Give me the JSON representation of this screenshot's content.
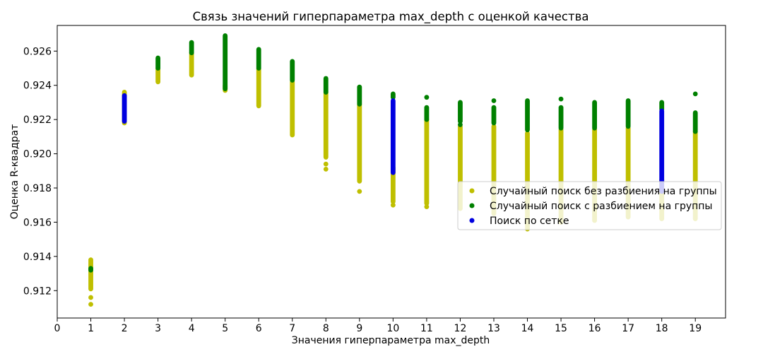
{
  "chart_data": {
    "type": "scatter",
    "title": "Связь значений гиперпараметра max_depth с оценкой качества",
    "xlabel": "Значения гиперпараметра max_depth",
    "ylabel": "Оценка R-квадрат",
    "xlim": [
      0,
      19.9
    ],
    "ylim": [
      0.9104,
      0.9275
    ],
    "x_ticks": [
      "0",
      "1",
      "2",
      "3",
      "4",
      "5",
      "6",
      "7",
      "8",
      "9",
      "10",
      "11",
      "12",
      "13",
      "14",
      "15",
      "16",
      "17",
      "18",
      "19"
    ],
    "y_ticks": [
      "0.912",
      "0.914",
      "0.916",
      "0.918",
      "0.920",
      "0.922",
      "0.924",
      "0.926"
    ],
    "grid": false,
    "legend_position": "right",
    "series": [
      {
        "name": "Случайный поиск без разбиения на группы",
        "color": "#bfbf00",
        "ranges": [
          {
            "x": 1,
            "min": 0.9121,
            "max": 0.9138
          },
          {
            "x": 2,
            "min": 0.9218,
            "max": 0.9236
          },
          {
            "x": 3,
            "min": 0.9242,
            "max": 0.925
          },
          {
            "x": 4,
            "min": 0.9246,
            "max": 0.9259
          },
          {
            "x": 5,
            "min": 0.9237,
            "max": 0.924
          },
          {
            "x": 6,
            "min": 0.9228,
            "max": 0.925
          },
          {
            "x": 7,
            "min": 0.9211,
            "max": 0.9242
          },
          {
            "x": 8,
            "min": 0.9198,
            "max": 0.9236
          },
          {
            "x": 9,
            "min": 0.9184,
            "max": 0.9229
          },
          {
            "x": 10,
            "min": 0.9172,
            "max": 0.9192
          },
          {
            "x": 11,
            "min": 0.9171,
            "max": 0.922
          },
          {
            "x": 12,
            "min": 0.9168,
            "max": 0.9216
          },
          {
            "x": 13,
            "min": 0.9165,
            "max": 0.9216
          },
          {
            "x": 14,
            "min": 0.9156,
            "max": 0.9212
          },
          {
            "x": 15,
            "min": 0.916,
            "max": 0.9214
          },
          {
            "x": 16,
            "min": 0.9161,
            "max": 0.9214
          },
          {
            "x": 17,
            "min": 0.9163,
            "max": 0.9215
          },
          {
            "x": 18,
            "min": 0.9162,
            "max": 0.9185
          },
          {
            "x": 19,
            "min": 0.9162,
            "max": 0.9213
          }
        ],
        "points": [
          {
            "x": 1,
            "y": 0.9112
          },
          {
            "x": 1,
            "y": 0.9116
          },
          {
            "x": 8,
            "y": 0.9191
          },
          {
            "x": 8,
            "y": 0.9194
          },
          {
            "x": 9,
            "y": 0.9178
          },
          {
            "x": 10,
            "y": 0.917
          },
          {
            "x": 11,
            "y": 0.9169
          }
        ]
      },
      {
        "name": "Случайный поиск с разбиением на группы",
        "color": "#008000",
        "ranges": [
          {
            "x": 1,
            "min": 0.9132,
            "max": 0.9133
          },
          {
            "x": 3,
            "min": 0.925,
            "max": 0.9256
          },
          {
            "x": 4,
            "min": 0.9259,
            "max": 0.9265
          },
          {
            "x": 5,
            "min": 0.9238,
            "max": 0.9269
          },
          {
            "x": 6,
            "min": 0.925,
            "max": 0.9261
          },
          {
            "x": 7,
            "min": 0.9243,
            "max": 0.9254
          },
          {
            "x": 8,
            "min": 0.9236,
            "max": 0.9244
          },
          {
            "x": 9,
            "min": 0.9229,
            "max": 0.9239
          },
          {
            "x": 10,
            "min": 0.9233,
            "max": 0.9235
          },
          {
            "x": 11,
            "min": 0.922,
            "max": 0.9227
          },
          {
            "x": 12,
            "min": 0.9219,
            "max": 0.923
          },
          {
            "x": 13,
            "min": 0.9218,
            "max": 0.9227
          },
          {
            "x": 14,
            "min": 0.9214,
            "max": 0.9231
          },
          {
            "x": 15,
            "min": 0.9215,
            "max": 0.9227
          },
          {
            "x": 16,
            "min": 0.9215,
            "max": 0.923
          },
          {
            "x": 17,
            "min": 0.9216,
            "max": 0.9231
          },
          {
            "x": 18,
            "min": 0.9226,
            "max": 0.923
          },
          {
            "x": 19,
            "min": 0.9213,
            "max": 0.9224
          }
        ],
        "points": [
          {
            "x": 11,
            "y": 0.9233
          },
          {
            "x": 12,
            "y": 0.9217
          },
          {
            "x": 13,
            "y": 0.9231
          },
          {
            "x": 15,
            "y": 0.9232
          },
          {
            "x": 19,
            "y": 0.9235
          }
        ]
      },
      {
        "name": "Поиск по сетке",
        "color": "#0000e0",
        "ranges": [
          {
            "x": 2,
            "min": 0.9219,
            "max": 0.9234
          },
          {
            "x": 10,
            "min": 0.9189,
            "max": 0.9231
          },
          {
            "x": 18,
            "min": 0.9178,
            "max": 0.9225
          }
        ],
        "points": []
      }
    ]
  }
}
